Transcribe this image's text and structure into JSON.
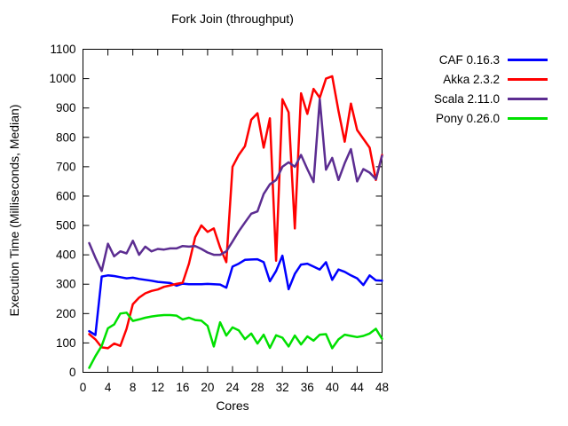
{
  "chart_data": {
    "type": "line",
    "title": "Fork Join (throughput)",
    "xlabel": "Cores",
    "ylabel": "Execution Time (Milliseconds, Median)",
    "xlim": [
      0,
      48
    ],
    "ylim": [
      0,
      1100
    ],
    "xticks": [
      0,
      4,
      8,
      12,
      16,
      20,
      24,
      28,
      32,
      36,
      40,
      44,
      48
    ],
    "yticks": [
      0,
      100,
      200,
      300,
      400,
      500,
      600,
      700,
      800,
      900,
      1000,
      1100
    ],
    "grid": false,
    "legend_position": "outside-top-right",
    "frame_color": "#000000",
    "background": "#ffffff",
    "x": [
      1,
      2,
      3,
      4,
      5,
      6,
      7,
      8,
      9,
      10,
      11,
      12,
      13,
      14,
      15,
      16,
      17,
      18,
      19,
      20,
      21,
      22,
      23,
      24,
      25,
      26,
      27,
      28,
      29,
      30,
      31,
      32,
      33,
      34,
      35,
      36,
      37,
      38,
      39,
      40,
      41,
      42,
      43,
      44,
      45,
      46,
      47,
      48
    ],
    "series": [
      {
        "name": "CAF 0.16.3",
        "color": "#0000ff",
        "values": [
          140,
          127,
          326,
          330,
          328,
          324,
          320,
          322,
          318,
          315,
          312,
          308,
          306,
          304,
          295,
          302,
          300,
          300,
          300,
          301,
          300,
          299,
          288,
          360,
          370,
          383,
          384,
          385,
          375,
          310,
          345,
          397,
          283,
          335,
          367,
          370,
          360,
          350,
          375,
          315,
          350,
          342,
          330,
          320,
          297,
          330,
          313,
          312
        ]
      },
      {
        "name": "Akka 2.3.2",
        "color": "#ff0000",
        "values": [
          130,
          112,
          85,
          82,
          98,
          90,
          148,
          232,
          254,
          269,
          277,
          282,
          291,
          296,
          301,
          305,
          370,
          460,
          500,
          478,
          490,
          425,
          375,
          700,
          740,
          770,
          860,
          882,
          765,
          865,
          380,
          930,
          885,
          490,
          950,
          880,
          965,
          935,
          1000,
          1008,
          890,
          785,
          915,
          825,
          795,
          765,
          655,
          740
        ]
      },
      {
        "name": "Scala 2.11.0",
        "color": "#5c2d91",
        "values": [
          440,
          390,
          345,
          438,
          395,
          412,
          405,
          448,
          400,
          428,
          412,
          420,
          418,
          422,
          422,
          430,
          428,
          430,
          420,
          408,
          400,
          400,
          412,
          445,
          480,
          510,
          540,
          548,
          607,
          640,
          655,
          700,
          715,
          700,
          740,
          692,
          648,
          930,
          690,
          730,
          655,
          712,
          760,
          650,
          692,
          680,
          658,
          737
        ]
      },
      {
        "name": "Pony 0.26.0",
        "color": "#00e000",
        "values": [
          15,
          55,
          90,
          150,
          163,
          200,
          203,
          175,
          180,
          186,
          190,
          193,
          195,
          195,
          193,
          180,
          186,
          178,
          176,
          158,
          88,
          170,
          125,
          153,
          143,
          113,
          132,
          98,
          128,
          83,
          126,
          118,
          88,
          125,
          95,
          122,
          108,
          128,
          130,
          82,
          112,
          128,
          124,
          120,
          124,
          132,
          148,
          114
        ]
      }
    ]
  }
}
